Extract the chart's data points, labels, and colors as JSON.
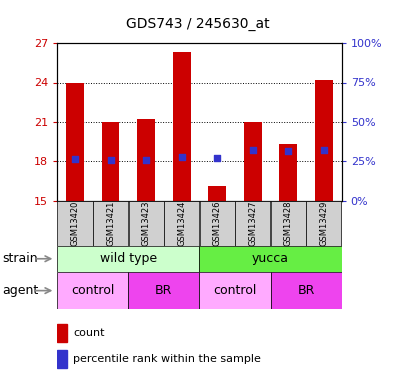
{
  "title": "GDS743 / 245630_at",
  "samples": [
    "GSM13420",
    "GSM13421",
    "GSM13423",
    "GSM13424",
    "GSM13426",
    "GSM13427",
    "GSM13428",
    "GSM13429"
  ],
  "bar_bottoms": [
    15,
    15,
    15,
    15,
    15,
    15,
    15,
    15
  ],
  "bar_tops": [
    24.0,
    21.0,
    21.2,
    26.3,
    16.1,
    21.0,
    19.3,
    24.2
  ],
  "blue_values": [
    18.2,
    18.1,
    18.1,
    18.3,
    18.25,
    18.85,
    18.75,
    18.85
  ],
  "ylim_left": [
    15,
    27
  ],
  "ylim_right": [
    0,
    100
  ],
  "yticks_left": [
    15,
    18,
    21,
    24,
    27
  ],
  "yticks_right": [
    0,
    25,
    50,
    75,
    100
  ],
  "ytick_labels_right": [
    "0%",
    "25%",
    "50%",
    "75%",
    "100%"
  ],
  "bar_color": "#CC0000",
  "blue_color": "#3333CC",
  "strain_labels": [
    "wild type",
    "yucca"
  ],
  "strain_colors": [
    "#CCFFCC",
    "#66EE44"
  ],
  "agent_labels": [
    "control",
    "BR",
    "control",
    "BR"
  ],
  "agent_colors": [
    "#FFAAFF",
    "#EE44EE",
    "#FFAAFF",
    "#EE44EE"
  ],
  "tick_color_left": "#CC0000",
  "tick_color_right": "#3333CC",
  "bar_width": 0.5,
  "blue_square_size": 22,
  "grid_yticks": [
    18,
    21,
    24
  ]
}
